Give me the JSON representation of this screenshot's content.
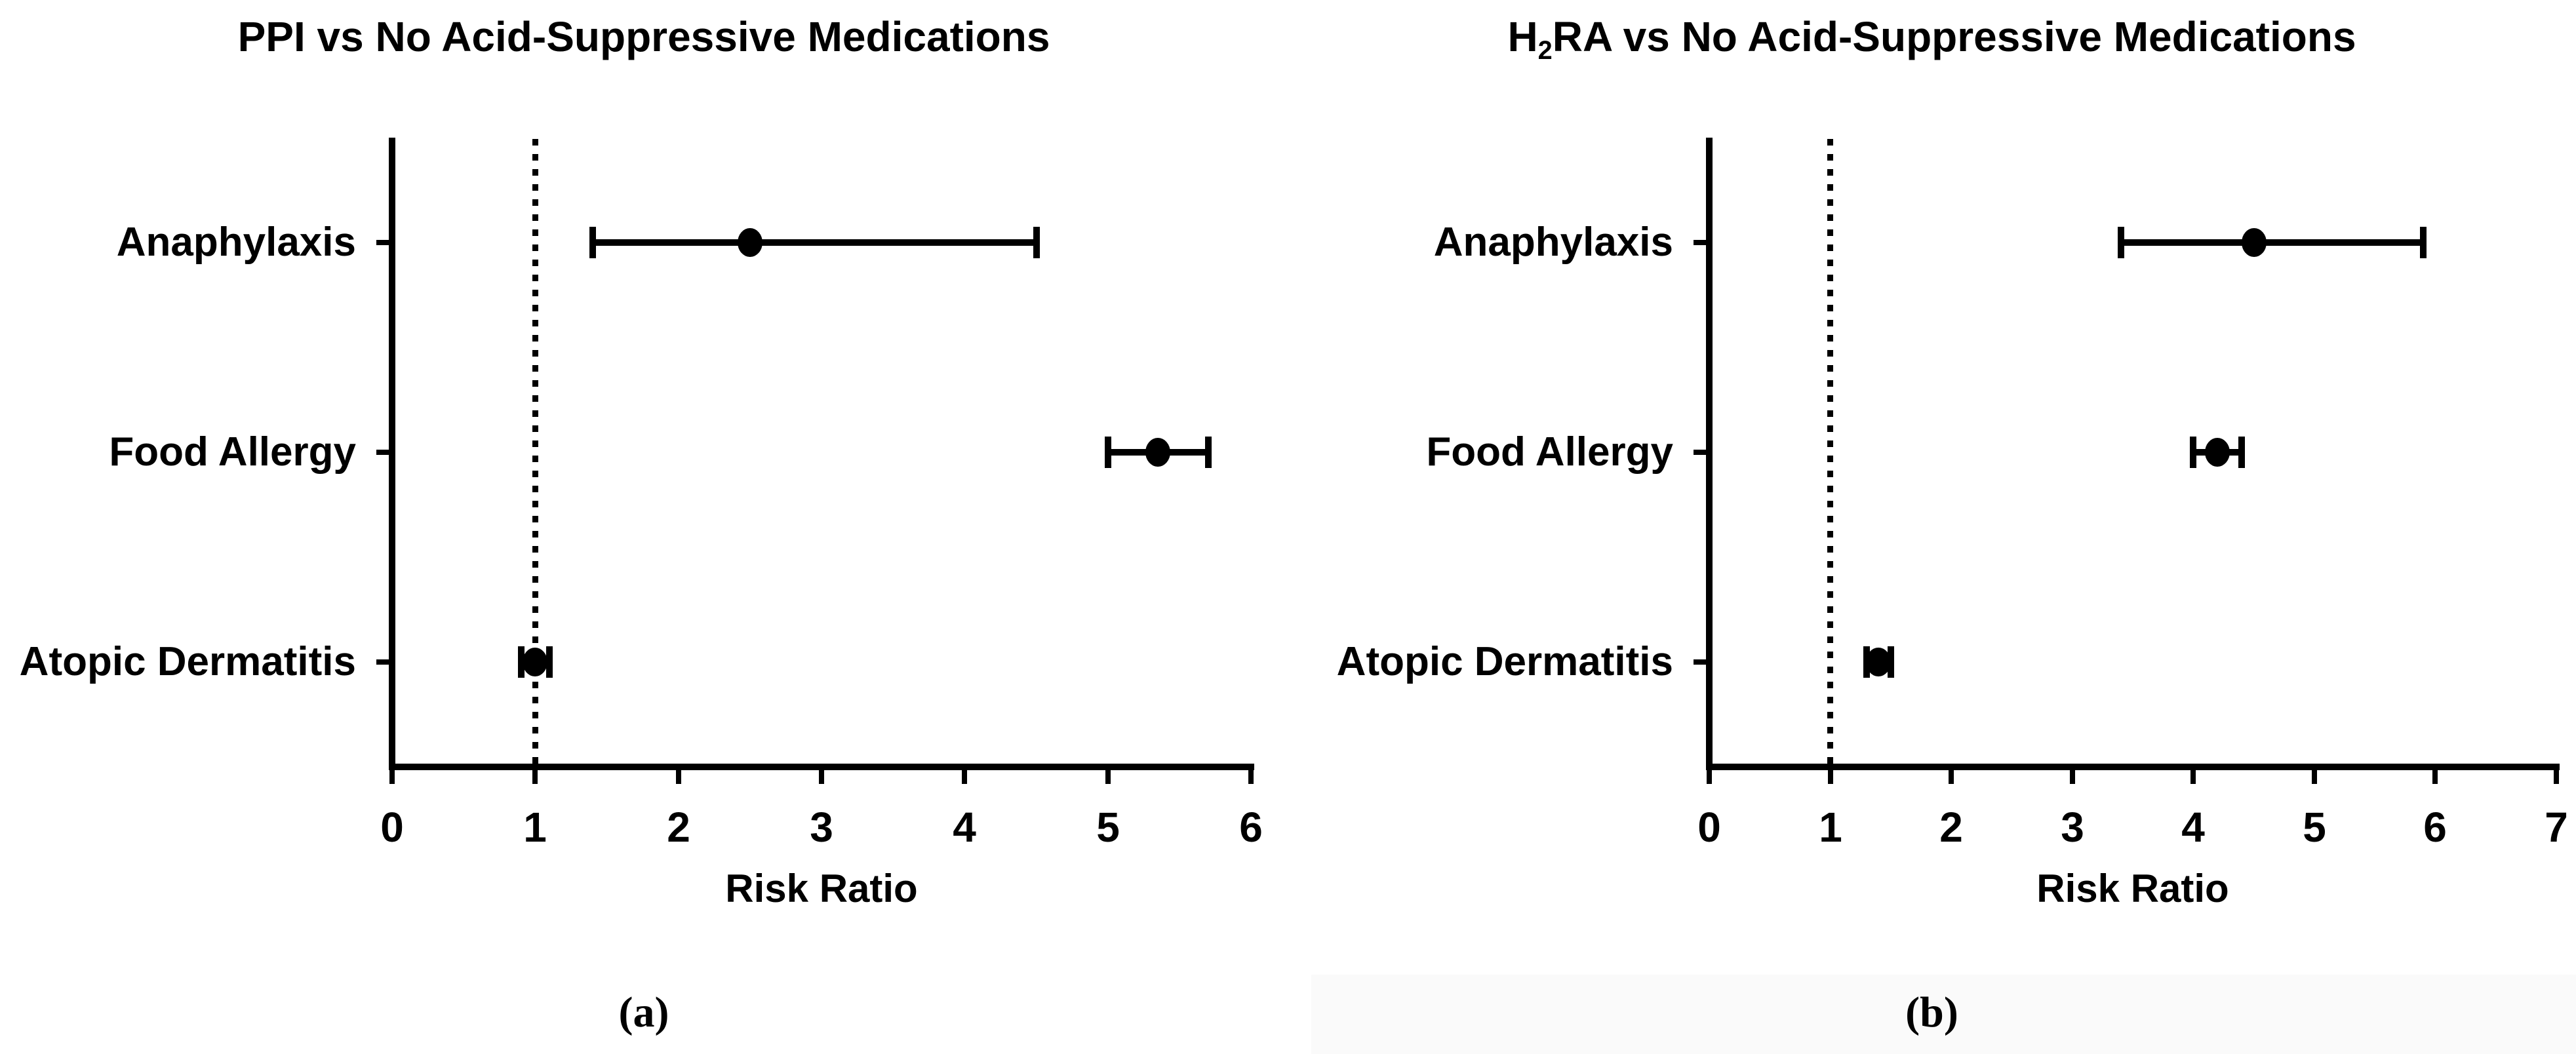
{
  "figure": {
    "background": "#ffffff",
    "ink_color": "#000000",
    "bottom_right_band_color": "#fafafa"
  },
  "chart_data": [
    {
      "type": "scatter",
      "subtype": "forest-plot-horizontal-error-bars",
      "panel": "a",
      "title": "PPI vs No Acid-Suppressive Medications",
      "title_parts": [
        {
          "text": "PPI vs No Acid-Suppressive Medications",
          "sub": false
        }
      ],
      "xlabel": "Risk Ratio",
      "caption": "(a)",
      "xlim": [
        0,
        6
      ],
      "x_ticks": [
        0,
        1,
        2,
        3,
        4,
        5,
        6
      ],
      "reference_line_x": 1,
      "reference_line_style": "dotted",
      "grid": false,
      "legend": false,
      "marker": {
        "shape": "circle",
        "color": "#000000"
      },
      "categories": [
        "Anaphylaxis",
        "Food Allergy",
        "Atopic Dermatitis"
      ],
      "points": [
        {
          "category": "Anaphylaxis",
          "risk_ratio": 2.5,
          "ci_low": 1.4,
          "ci_high": 4.5
        },
        {
          "category": "Food Allergy",
          "risk_ratio": 5.35,
          "ci_low": 5.0,
          "ci_high": 5.7
        },
        {
          "category": "Atopic Dermatitis",
          "risk_ratio": 1.0,
          "ci_low": 0.9,
          "ci_high": 1.1
        }
      ]
    },
    {
      "type": "scatter",
      "subtype": "forest-plot-horizontal-error-bars",
      "panel": "b",
      "title": "H2RA vs No Acid-Suppressive Medications",
      "title_parts": [
        {
          "text": "H",
          "sub": false
        },
        {
          "text": "2",
          "sub": true
        },
        {
          "text": "RA vs No Acid-Suppressive Medications",
          "sub": false
        }
      ],
      "xlabel": "Risk Ratio",
      "caption": "(b)",
      "xlim": [
        0,
        7
      ],
      "x_ticks": [
        0,
        1,
        2,
        3,
        4,
        5,
        6,
        7
      ],
      "reference_line_x": 1,
      "reference_line_style": "dotted",
      "grid": false,
      "legend": false,
      "marker": {
        "shape": "circle",
        "color": "#000000"
      },
      "categories": [
        "Anaphylaxis",
        "Food Allergy",
        "Atopic Dermatitis"
      ],
      "points": [
        {
          "category": "Anaphylaxis",
          "risk_ratio": 4.5,
          "ci_low": 3.4,
          "ci_high": 5.9
        },
        {
          "category": "Food Allergy",
          "risk_ratio": 4.2,
          "ci_low": 4.0,
          "ci_high": 4.4
        },
        {
          "category": "Atopic Dermatitis",
          "risk_ratio": 1.4,
          "ci_low": 1.3,
          "ci_high": 1.5
        }
      ]
    }
  ]
}
